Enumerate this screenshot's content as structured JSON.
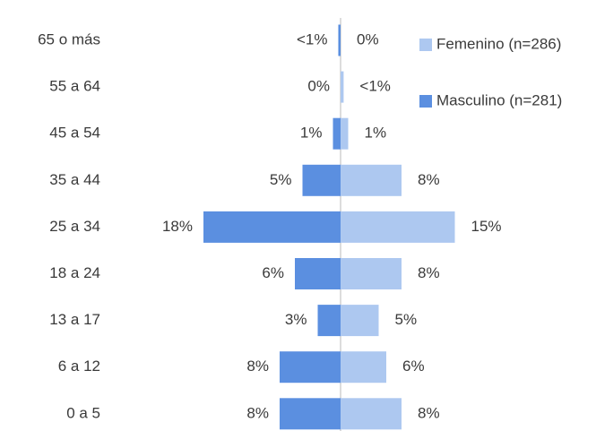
{
  "chart_data": {
    "type": "pyramid",
    "categories": [
      "65 o más",
      "55 a 64",
      "45 a 54",
      "35 a 44",
      "25 a 34",
      "18 a 24",
      "13 a 17",
      "6 a 12",
      "0 a 5"
    ],
    "series": [
      {
        "name": "Femenino (n=286)",
        "color": "#adc8f0",
        "side": "right",
        "values": [
          0,
          0.4,
          1,
          8,
          15,
          8,
          5,
          6,
          8
        ],
        "value_labels": [
          "0%",
          "<1%",
          "1%",
          "8%",
          "15%",
          "8%",
          "5%",
          "6%",
          "8%"
        ]
      },
      {
        "name": "Masculino (n=281)",
        "color": "#5b8fe0",
        "side": "left",
        "values": [
          0.3,
          0,
          1,
          5,
          18,
          6,
          3,
          8,
          8
        ],
        "value_labels": [
          "<1%",
          "0%",
          "1%",
          "5%",
          "18%",
          "6%",
          "3%",
          "8%",
          "8%"
        ]
      }
    ]
  }
}
